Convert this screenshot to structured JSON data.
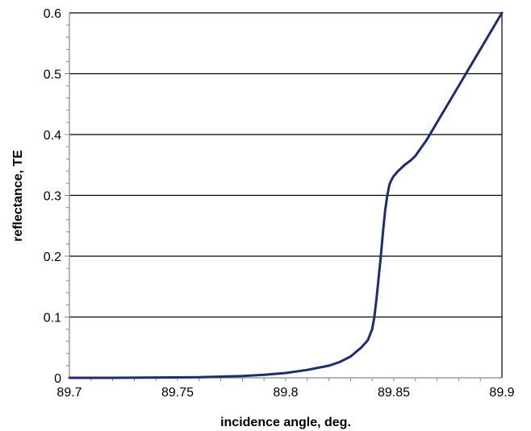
{
  "chart_data": {
    "type": "line",
    "title": "",
    "xlabel": "incidence angle, deg.",
    "ylabel": "reflectance, TE",
    "xlim": [
      89.7,
      89.9
    ],
    "ylim": [
      0,
      0.6
    ],
    "x_ticks": [
      "89.7",
      "89.75",
      "89.8",
      "89.85",
      "89.9"
    ],
    "y_ticks": [
      "0",
      "0.1",
      "0.2",
      "0.3",
      "0.4",
      "0.5",
      "0.6"
    ],
    "x_minor_step": 0.01,
    "y_minor_step": 0.02,
    "grid": "horizontal",
    "legend": "none",
    "line_color": "#1f2d6b",
    "series": [
      {
        "x": [
          89.7,
          89.72,
          89.74,
          89.76,
          89.78,
          89.79,
          89.8,
          89.81,
          89.82,
          89.825,
          89.83,
          89.835,
          89.838,
          89.84,
          89.841,
          89.842,
          89.843,
          89.844,
          89.845,
          89.846,
          89.847,
          89.848,
          89.849,
          89.85,
          89.852,
          89.855,
          89.858,
          89.86,
          89.865,
          89.87,
          89.875,
          89.88,
          89.885,
          89.89,
          89.895,
          89.9
        ],
        "y": [
          0.0,
          0.0,
          0.0005,
          0.001,
          0.003,
          0.005,
          0.008,
          0.013,
          0.02,
          0.026,
          0.035,
          0.05,
          0.062,
          0.08,
          0.1,
          0.13,
          0.165,
          0.2,
          0.24,
          0.275,
          0.3,
          0.318,
          0.326,
          0.332,
          0.34,
          0.35,
          0.358,
          0.365,
          0.39,
          0.42,
          0.45,
          0.48,
          0.51,
          0.54,
          0.57,
          0.6
        ]
      }
    ]
  }
}
